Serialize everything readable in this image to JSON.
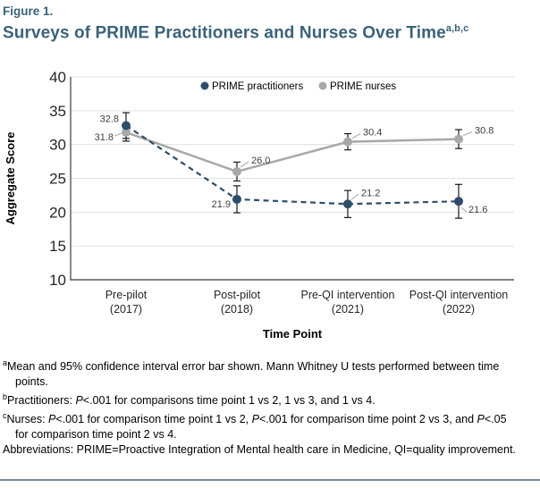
{
  "figure": {
    "label": "Figure 1.",
    "title": "Surveys of PRIME Practitioners and Nurses Over Time",
    "title_superscript": "a,b,c"
  },
  "colors": {
    "heading": "#3b6279",
    "practitioners": "#2e4d6b",
    "nurses": "#a8a8a8",
    "gridline": "#e0e0e0",
    "axis": "#595959",
    "error_bar": "#1a1a1a",
    "tick_text": "#262626",
    "data_label_text": "#3f3f3f",
    "leader": "#a6a6a6",
    "bottom_rule": "#7b8791"
  },
  "chart_data": {
    "type": "line",
    "title": "",
    "xlabel": "Time Point",
    "ylabel": "Aggregate Score",
    "ylim": [
      10,
      40
    ],
    "yticks": [
      10,
      15,
      20,
      25,
      30,
      35,
      40
    ],
    "grid": true,
    "legend_position": "top-center-inside",
    "error_bars": "95% CI",
    "categories": [
      [
        "Pre-pilot",
        "(2017)"
      ],
      [
        "Post-pilot",
        "(2018)"
      ],
      [
        "Pre-QI intervention",
        "(2021)"
      ],
      [
        "Post-QI intervention",
        "(2022)"
      ]
    ],
    "series": [
      {
        "name": "PRIME practitioners",
        "values": [
          32.8,
          21.9,
          21.2,
          21.6
        ],
        "ci_95": [
          1.9,
          2.0,
          2.0,
          2.5
        ],
        "line_style": "dashed",
        "color_key": "practitioners"
      },
      {
        "name": "PRIME nurses",
        "values": [
          31.8,
          26.0,
          30.4,
          30.8
        ],
        "ci_95": [
          1.3,
          1.4,
          1.2,
          1.4
        ],
        "line_style": "solid",
        "color_key": "nurses"
      }
    ]
  },
  "footnotes": [
    {
      "sup": "a",
      "parts": [
        {
          "t": "Mean and 95% confidence interval error bar shown. Mann Whitney U tests performed between time points."
        }
      ]
    },
    {
      "sup": "b",
      "parts": [
        {
          "t": "Practitioners: "
        },
        {
          "t": "P",
          "i": true
        },
        {
          "t": "<.001 for comparisons time point 1 vs 2, 1 vs 3, and 1 vs 4."
        }
      ]
    },
    {
      "sup": "c",
      "parts": [
        {
          "t": "Nurses: "
        },
        {
          "t": "P",
          "i": true
        },
        {
          "t": "<.001 for comparison time point 1 vs 2, "
        },
        {
          "t": "P",
          "i": true
        },
        {
          "t": "<.001 for comparison time point 2 vs 3, and "
        },
        {
          "t": "P",
          "i": true
        },
        {
          "t": "<.05 for comparison time point 2 vs 4."
        }
      ]
    },
    {
      "sup": "",
      "parts": [
        {
          "t": "Abbreviations: PRIME=Proactive Integration of Mental health care in Medicine, QI=quality improvement."
        }
      ]
    }
  ]
}
